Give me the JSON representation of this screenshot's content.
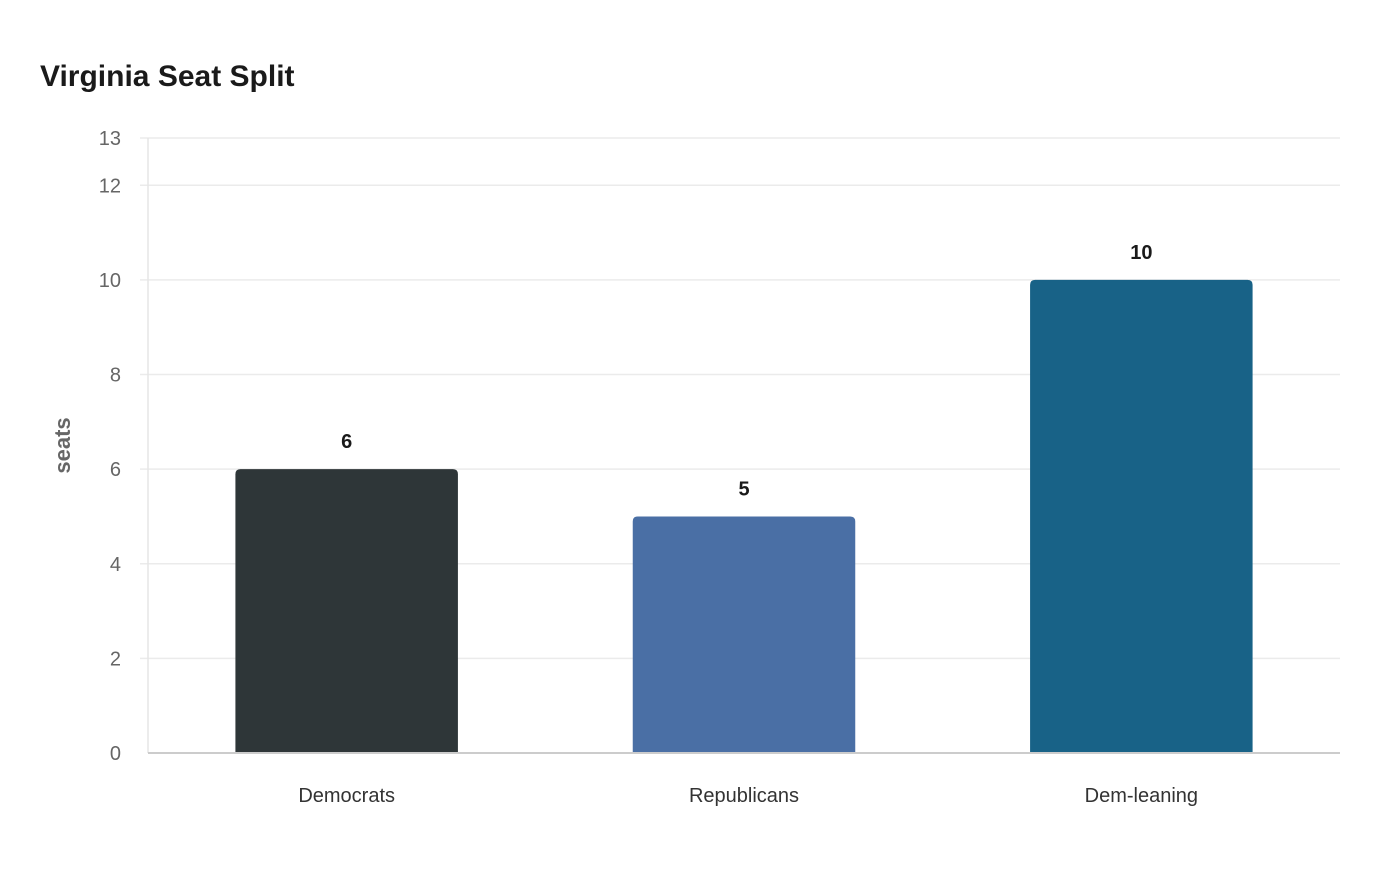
{
  "chart_data": {
    "type": "bar",
    "title": "Virginia Seat Split",
    "xlabel": "",
    "ylabel": "seats",
    "categories": [
      "Democrats",
      "Republicans",
      "Dem-leaning"
    ],
    "values": [
      6,
      5,
      10
    ],
    "colors": [
      "#2e3638",
      "#4a6fa5",
      "#186287"
    ],
    "ylim": [
      0,
      13
    ],
    "yticks": [
      0,
      2,
      4,
      6,
      8,
      10,
      12,
      13
    ],
    "grid": true,
    "legend": "none",
    "data_labels": true
  }
}
